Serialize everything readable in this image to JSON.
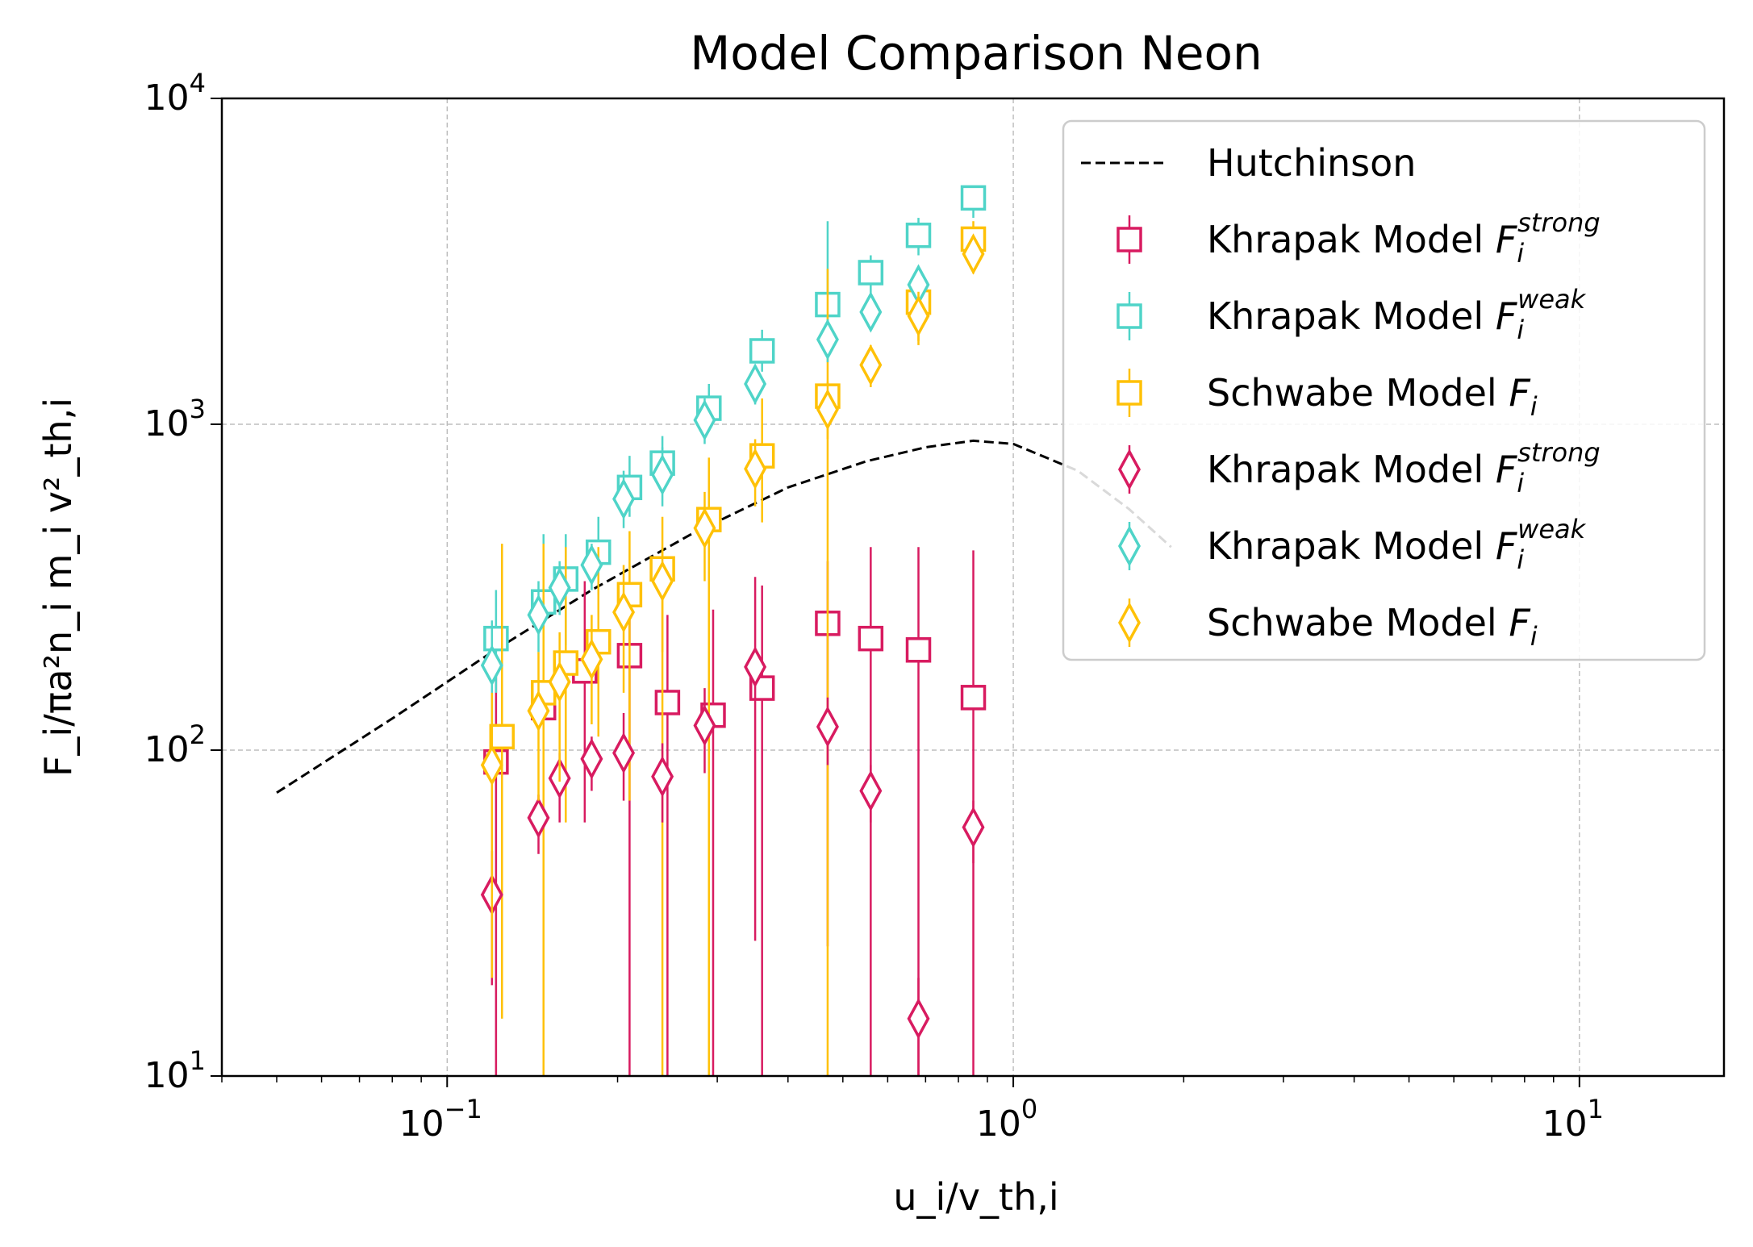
{
  "chart_data": {
    "type": "scatter",
    "title": "Model Comparison Neon",
    "xlabel": "u_i/v_th,i",
    "ylabel": "F_i/πa²n_i m_i v²_th,i",
    "xscale": "log",
    "yscale": "log",
    "xlim": [
      0.04,
      18
    ],
    "ylim": [
      10,
      10000
    ],
    "grid": true,
    "legend_position": "top-right",
    "x_ticks": [
      {
        "value": 0.1,
        "mantissa": "10",
        "exponent": "−1"
      },
      {
        "value": 1,
        "mantissa": "10",
        "exponent": "0"
      },
      {
        "value": 10,
        "mantissa": "10",
        "exponent": "1"
      }
    ],
    "y_ticks": [
      {
        "value": 10,
        "mantissa": "10",
        "exponent": "1"
      },
      {
        "value": 100,
        "mantissa": "10",
        "exponent": "2"
      },
      {
        "value": 1000,
        "mantissa": "10",
        "exponent": "3"
      },
      {
        "value": 10000,
        "mantissa": "10",
        "exponent": "4"
      }
    ],
    "line_series": {
      "name": "Hutchinson",
      "color": "#000000",
      "style": "dashed",
      "x": [
        0.05,
        0.08,
        0.12,
        0.18,
        0.27,
        0.4,
        0.55,
        0.7,
        0.85,
        1.0,
        1.3,
        1.6,
        1.9
      ],
      "y": [
        74,
        125,
        200,
        310,
        460,
        640,
        770,
        850,
        890,
        870,
        720,
        550,
        420
      ]
    },
    "series": [
      {
        "name_base": "Khrapak Model ",
        "name_sub": "i",
        "name_sup": "strong",
        "marker": "square",
        "color": "#d81b60",
        "x": [
          0.122,
          0.148,
          0.175,
          0.21,
          0.245,
          0.295,
          0.36,
          0.47,
          0.56,
          0.68,
          0.85
        ],
        "y": [
          92,
          135,
          175,
          195,
          140,
          128,
          155,
          245,
          220,
          203,
          145
        ],
        "yerr_low": [
          10,
          15,
          60,
          10,
          10,
          10,
          10,
          25,
          10,
          10,
          10
        ],
        "yerr_high": [
          190,
          250,
          330,
          260,
          260,
          270,
          320,
          380,
          420,
          420,
          410
        ]
      },
      {
        "name_base": "Khrapak Model ",
        "name_sub": "i",
        "name_sup": "weak",
        "marker": "square",
        "color": "#4fd4c8",
        "x": [
          0.122,
          0.148,
          0.162,
          0.185,
          0.21,
          0.24,
          0.29,
          0.36,
          0.47,
          0.56,
          0.68,
          0.85
        ],
        "y": [
          220,
          285,
          335,
          405,
          640,
          760,
          1120,
          1680,
          2330,
          2920,
          3800,
          4950
        ],
        "yerr_low": [
          150,
          170,
          210,
          300,
          520,
          620,
          960,
          1450,
          2000,
          2500,
          3300,
          4300
        ],
        "yerr_high": [
          310,
          460,
          460,
          520,
          800,
          920,
          1330,
          1950,
          4200,
          3300,
          4300,
          5400
        ]
      },
      {
        "name_base": "Schwabe Model ",
        "name_sub": "i",
        "name_sup": "",
        "marker": "square",
        "color": "#ffc107",
        "x": [
          0.125,
          0.148,
          0.162,
          0.185,
          0.21,
          0.24,
          0.29,
          0.36,
          0.47,
          0.68,
          0.85
        ],
        "y": [
          110,
          150,
          185,
          215,
          300,
          360,
          510,
          800,
          1220,
          2370,
          3700
        ],
        "yerr_low": [
          15,
          10,
          60,
          110,
          70,
          10,
          10,
          500,
          10,
          1800,
          3100
        ],
        "yerr_high": [
          430,
          430,
          420,
          420,
          470,
          520,
          790,
          1200,
          3000,
          2700,
          4200
        ]
      },
      {
        "name_base": "Khrapak Model ",
        "name_sub": "i",
        "name_sup": "strong",
        "marker": "diamond",
        "color": "#d81b60",
        "x": [
          0.12,
          0.145,
          0.158,
          0.18,
          0.205,
          0.24,
          0.285,
          0.35,
          0.47,
          0.56,
          0.68,
          0.85
        ],
        "y": [
          36,
          62,
          82,
          94,
          98,
          83,
          119,
          180,
          118,
          75,
          15,
          58
        ],
        "yerr_low": [
          19,
          48,
          60,
          75,
          70,
          60,
          85,
          26,
          90,
          60,
          10,
          45
        ],
        "yerr_high": [
          49,
          73,
          98,
          110,
          130,
          105,
          155,
          340,
          145,
          90,
          20,
          70
        ]
      },
      {
        "name_base": "Khrapak Model ",
        "name_sub": "i",
        "name_sup": "weak",
        "marker": "diamond",
        "color": "#4fd4c8",
        "x": [
          0.12,
          0.145,
          0.158,
          0.18,
          0.205,
          0.24,
          0.285,
          0.35,
          0.47,
          0.56,
          0.68
        ],
        "y": [
          182,
          260,
          315,
          370,
          590,
          700,
          1030,
          1330,
          1820,
          2210,
          2680
        ],
        "yerr_low": [
          120,
          200,
          260,
          310,
          480,
          560,
          870,
          1150,
          1550,
          1950,
          2350
        ],
        "yerr_high": [
          250,
          330,
          380,
          430,
          720,
          850,
          1200,
          1500,
          2100,
          2450,
          3000
        ]
      },
      {
        "name_base": "Schwabe Model ",
        "name_sub": "i",
        "name_sup": "",
        "marker": "diamond",
        "color": "#ffc107",
        "x": [
          0.12,
          0.145,
          0.158,
          0.18,
          0.205,
          0.24,
          0.285,
          0.35,
          0.47,
          0.56,
          0.68,
          0.85
        ],
        "y": [
          90,
          132,
          162,
          190,
          265,
          330,
          480,
          730,
          1110,
          1520,
          2150,
          3330
        ],
        "yerr_low": [
          20,
          70,
          80,
          120,
          150,
          200,
          330,
          560,
          900,
          1300,
          1750,
          2900
        ],
        "yerr_high": [
          150,
          200,
          230,
          260,
          370,
          420,
          620,
          900,
          1350,
          1750,
          2550,
          3700
        ]
      }
    ]
  }
}
